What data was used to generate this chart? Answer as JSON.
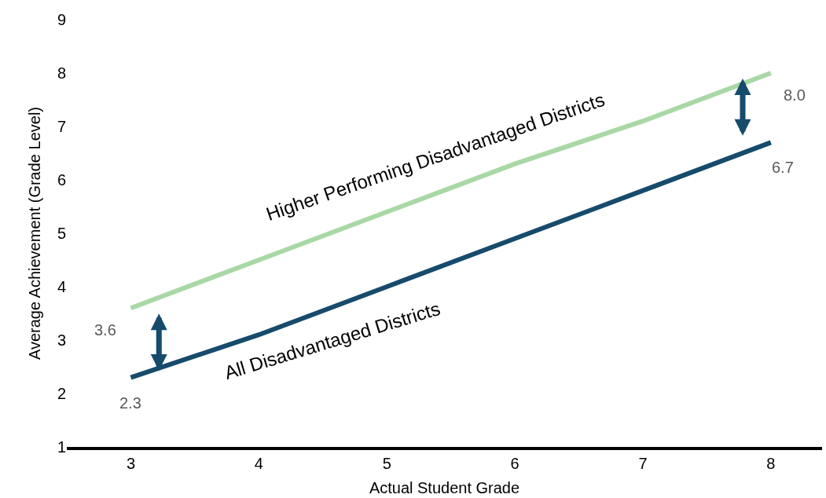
{
  "chart_data": {
    "type": "line",
    "xlabel": "Actual Student Grade",
    "ylabel": "Average Achievement (Grade Level)",
    "x": [
      3,
      4,
      5,
      6,
      7,
      8
    ],
    "series": [
      {
        "name": "Higher Performing Disadvantaged Districts",
        "color": "#a9d8a6",
        "values": [
          3.6,
          4.5,
          5.4,
          6.3,
          7.1,
          8.0
        ],
        "value_labels": [
          "3.6",
          null,
          null,
          null,
          null,
          "8.0"
        ]
      },
      {
        "name": "All Disadvantaged Districts",
        "color": "#164b6c",
        "values": [
          2.3,
          3.1,
          4.0,
          4.9,
          5.8,
          6.7
        ],
        "value_labels": [
          "2.3",
          null,
          null,
          null,
          null,
          "6.7"
        ]
      }
    ],
    "xlim": [
      2.5,
      8.4
    ],
    "xticks": [
      3,
      4,
      5,
      6,
      7,
      8
    ],
    "ylim": [
      1,
      9
    ],
    "yticks": [
      1,
      2,
      3,
      4,
      5,
      6,
      7,
      8,
      9
    ],
    "marker": "none",
    "line_style": "solid"
  }
}
